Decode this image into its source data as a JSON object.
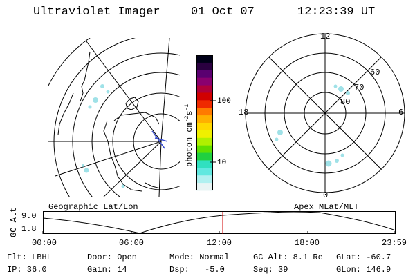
{
  "header": {
    "title": "Ultraviolet Imager",
    "date": "01 Oct 07",
    "time": "12:23:39 UT"
  },
  "geo_map": {
    "label": "Geographic Lat/Lon"
  },
  "colorbar": {
    "unit_prefix": "photon cm",
    "unit_exp1": "-2",
    "unit_mid": "s",
    "unit_exp2": "-1",
    "tick_100": "100",
    "tick_10": "10",
    "colors": [
      "#000018",
      "#2a0040",
      "#5a0070",
      "#8a006f",
      "#b0003a",
      "#d10000",
      "#ef2a00",
      "#ff7a00",
      "#ffb000",
      "#ffd800",
      "#f0f000",
      "#b0f000",
      "#60e000",
      "#20d040",
      "#30e0c0",
      "#60e8e0",
      "#b0f0f0",
      "#e8f4f4"
    ]
  },
  "polar_map": {
    "label": "Apex MLat/MLT",
    "mlt_top": "12",
    "mlt_right": "6",
    "mlt_bottom": "0",
    "mlt_left": "18",
    "lat_60": "60",
    "lat_70": "70",
    "lat_80": "80"
  },
  "altitude_plot": {
    "axis_label": "GC Alt",
    "y_top": "9.0",
    "y_bottom": "1.8",
    "x_ticks": [
      "00:00",
      "06:00",
      "12:00",
      "18:00",
      "23:59"
    ],
    "marker_color": "#d00000"
  },
  "footer": {
    "filter": "Flt: LBHL",
    "door": "Door: Open",
    "mode": "Mode: Normal",
    "gc_alt": "GC Alt: 8.1 Re",
    "glat": "GLat: -60.7",
    "ip": "IP: 36.0",
    "gain": "Gain: 14",
    "dsp_label": "Dsp:",
    "dsp_value": "-5.0",
    "seq": "Seq: 39",
    "glon": "GLon: 146.9"
  }
}
